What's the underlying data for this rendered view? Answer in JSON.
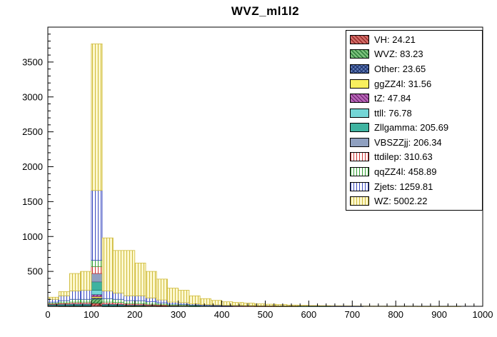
{
  "title": "WVZ_ml1l2",
  "chart_data": {
    "type": "bar",
    "stacked": true,
    "title": "WVZ_ml1l2",
    "xlabel": "",
    "ylabel": "",
    "xlim": [
      0,
      1000
    ],
    "ylim": [
      0,
      4000
    ],
    "bin_width": 25,
    "x_major_tick": 100,
    "x_minor_tick": 20,
    "y_major_tick": 500,
    "y_minor_tick": 100,
    "x_tick_labels": [
      "0",
      "100",
      "200",
      "300",
      "400",
      "500",
      "600",
      "700",
      "800",
      "900",
      "1000"
    ],
    "y_tick_labels": [
      "500",
      "1000",
      "1500",
      "2000",
      "2500",
      "3000",
      "3500"
    ],
    "grid": false,
    "legend_position": "top-right",
    "frame_color": "#000000",
    "series": [
      {
        "name": "VH",
        "label": "VH: 24.21",
        "total": 24.21,
        "fill": "#cf6b66",
        "line": "#8b1a1a",
        "pattern": "diag",
        "values": [
          2,
          1,
          1,
          1,
          45,
          1,
          1,
          1,
          0,
          0,
          0,
          0,
          0,
          0,
          0,
          0,
          0,
          0,
          0,
          0,
          0,
          0,
          0,
          0,
          0,
          0,
          0,
          0,
          0,
          0,
          0,
          0,
          0,
          0,
          0,
          0,
          0,
          0,
          0,
          0
        ]
      },
      {
        "name": "WVZ",
        "label": "WVZ: 83.23",
        "total": 83.23,
        "fill": "#79bf7a",
        "line": "#1a6b2a",
        "pattern": "diag",
        "values": [
          2,
          2,
          2,
          2,
          60,
          1,
          1,
          1,
          1,
          0,
          0,
          0,
          0,
          0,
          0,
          0,
          0,
          0,
          0,
          0,
          0,
          0,
          0,
          0,
          0,
          0,
          0,
          0,
          0,
          0,
          0,
          0,
          0,
          0,
          0,
          0,
          0,
          0,
          0,
          0
        ]
      },
      {
        "name": "Other",
        "label": "Other: 23.65",
        "total": 23.65,
        "fill": "#5b76b0",
        "line": "#1a2f6b",
        "pattern": "cross",
        "values": [
          1,
          1,
          1,
          1,
          15,
          1,
          1,
          0,
          0,
          0,
          0,
          0,
          0,
          0,
          0,
          0,
          0,
          0,
          0,
          0,
          0,
          0,
          0,
          0,
          0,
          0,
          0,
          0,
          0,
          0,
          0,
          0,
          0,
          0,
          0,
          0,
          0,
          0,
          0,
          0
        ]
      },
      {
        "name": "ggZZ4l",
        "label": "ggZZ4l: 31.56",
        "total": 31.56,
        "fill": "#f7ef5e",
        "line": "#b8a820",
        "pattern": "solid",
        "values": [
          2,
          2,
          2,
          2,
          20,
          2,
          2,
          1,
          1,
          1,
          1,
          0,
          0,
          0,
          0,
          0,
          0,
          0,
          0,
          0,
          0,
          0,
          0,
          0,
          0,
          0,
          0,
          0,
          0,
          0,
          0,
          0,
          0,
          0,
          0,
          0,
          0,
          0,
          0,
          0
        ]
      },
      {
        "name": "tZ",
        "label": "tZ: 47.84",
        "total": 47.84,
        "fill": "#b565b5",
        "line": "#6b1a6b",
        "pattern": "diag",
        "values": [
          3,
          4,
          4,
          4,
          30,
          4,
          4,
          2,
          2,
          2,
          1,
          0,
          0,
          0,
          0,
          0,
          0,
          0,
          0,
          0,
          0,
          0,
          0,
          0,
          0,
          0,
          0,
          0,
          0,
          0,
          0,
          0,
          0,
          0,
          0,
          0,
          0,
          0,
          0,
          0
        ]
      },
      {
        "name": "ttll",
        "label": "ttll: 76.78",
        "total": 76.78,
        "fill": "#74d6d6",
        "line": "#2a9a9a",
        "pattern": "solid",
        "values": [
          4,
          5,
          6,
          6,
          60,
          6,
          6,
          4,
          4,
          3,
          2,
          1,
          0,
          0,
          0,
          0,
          0,
          0,
          0,
          0,
          0,
          0,
          0,
          0,
          0,
          0,
          0,
          0,
          0,
          0,
          0,
          0,
          0,
          0,
          0,
          0,
          0,
          0,
          0,
          0
        ]
      },
      {
        "name": "Zllgamma",
        "label": "Zllgamma: 205.69",
        "total": 205.69,
        "fill": "#3fb3a0",
        "line": "#1f7a6b",
        "pattern": "solid",
        "values": [
          8,
          10,
          12,
          12,
          120,
          10,
          9,
          7,
          7,
          5,
          3,
          2,
          2,
          1,
          0,
          0,
          0,
          0,
          0,
          0,
          0,
          0,
          0,
          0,
          0,
          0,
          0,
          0,
          0,
          0,
          0,
          0,
          0,
          0,
          0,
          0,
          0,
          0,
          0,
          0
        ]
      },
      {
        "name": "VBSZZjj",
        "label": "VBSZZjj: 206.34",
        "total": 206.34,
        "fill": "#8fa0c0",
        "line": "#5a6a8a",
        "pattern": "solid",
        "values": [
          8,
          10,
          12,
          12,
          120,
          10,
          9,
          7,
          7,
          5,
          4,
          3,
          3,
          2,
          2,
          1,
          1,
          0,
          0,
          0,
          0,
          0,
          0,
          0,
          0,
          0,
          0,
          0,
          0,
          0,
          0,
          0,
          0,
          0,
          0,
          0,
          0,
          0,
          0,
          0
        ]
      },
      {
        "name": "ttdilep",
        "label": "ttdilep: 310.63",
        "total": 310.63,
        "fill": "#ffffff",
        "line": "#cc3333",
        "pattern": "vlines",
        "values": [
          10,
          15,
          20,
          20,
          100,
          25,
          22,
          18,
          18,
          14,
          11,
          8,
          7,
          5,
          3,
          3,
          2,
          2,
          2,
          1,
          1,
          1,
          1,
          0,
          0,
          0,
          0,
          0,
          0,
          0,
          0,
          0,
          0,
          0,
          0,
          0,
          0,
          0,
          0,
          0
        ]
      },
      {
        "name": "qqZZ4l",
        "label": "qqZZ4l: 458.89",
        "total": 458.89,
        "fill": "#ffffff",
        "line": "#33a033",
        "pattern": "vlines",
        "values": [
          20,
          30,
          40,
          40,
          90,
          50,
          45,
          40,
          40,
          35,
          27,
          18,
          16,
          10,
          7,
          6,
          4,
          4,
          3,
          2,
          2,
          1,
          1,
          1,
          1,
          1,
          0,
          0,
          0,
          0,
          0,
          0,
          0,
          0,
          0,
          0,
          0,
          0,
          0,
          0
        ]
      },
      {
        "name": "Zjets",
        "label": "Zjets: 1259.81",
        "total": 1259.81,
        "fill": "#ffffff",
        "line": "#3a4ac0",
        "pattern": "vlines",
        "values": [
          40,
          70,
          120,
          130,
          1000,
          110,
          90,
          70,
          70,
          55,
          42,
          28,
          24,
          16,
          12,
          9,
          7,
          6,
          5,
          4,
          3,
          3,
          2,
          2,
          1,
          1,
          1,
          1,
          1,
          0,
          0,
          0,
          0,
          0,
          0,
          0,
          0,
          0,
          0,
          0
        ]
      },
      {
        "name": "WZ",
        "label": "WZ: 5002.22",
        "total": 5002.22,
        "fill": "#fdf8cf",
        "line": "#cfbb3a",
        "pattern": "vlines",
        "values": [
          30,
          60,
          250,
          270,
          2100,
          760,
          610,
          649,
          470,
          380,
          299,
          200,
          178,
          116,
          86,
          66,
          51,
          43,
          35,
          28,
          24,
          20,
          14,
          11,
          8,
          6,
          5,
          4,
          3,
          3,
          3,
          2,
          2,
          2,
          1,
          1,
          1,
          1,
          0,
          0
        ]
      }
    ]
  }
}
